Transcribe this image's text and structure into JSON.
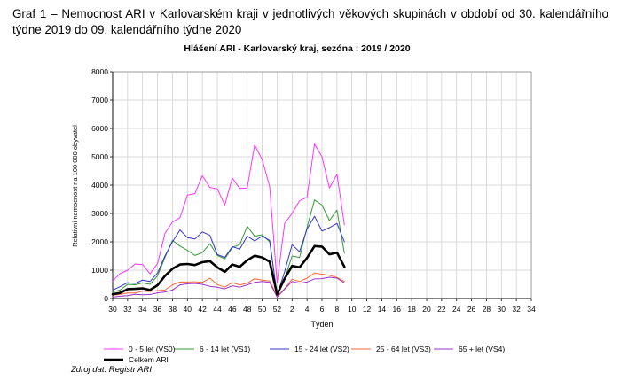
{
  "caption": "Graf 1 – Nemocnost ARI v Karlovarském kraji v jednotlivých věkových skupinách v období od 30. kalendářního týdne 2019 do 09. kalendářního týdne 2020",
  "source": "Zdroj dat: Registr ARI",
  "chart_data": {
    "type": "line",
    "title": "Hlášení ARI  -  Karlovarský kraj, sezóna : 2019 / 2020",
    "xlabel": "Týden",
    "ylabel": "Relativní nemocnost na 100 000 obyvatel",
    "ylim": [
      0,
      8000
    ],
    "yticks": [
      "0",
      "1000",
      "2000",
      "3000",
      "4000",
      "5000",
      "6000",
      "7000",
      "8000"
    ],
    "xticks": [
      "30",
      "32",
      "34",
      "36",
      "38",
      "40",
      "42",
      "44",
      "46",
      "48",
      "50",
      "52",
      "2",
      "4",
      "6",
      "8",
      "10",
      "12",
      "14",
      "16",
      "18",
      "20",
      "22",
      "24",
      "26",
      "28",
      "30",
      "32",
      "34"
    ],
    "weeks": [
      "30",
      "31",
      "32",
      "33",
      "34",
      "35",
      "36",
      "37",
      "38",
      "39",
      "40",
      "41",
      "42",
      "43",
      "44",
      "45",
      "46",
      "47",
      "48",
      "49",
      "50",
      "51",
      "52",
      "1",
      "2",
      "3",
      "4",
      "5",
      "6",
      "7",
      "8",
      "9"
    ],
    "grid": true,
    "legend_position": "bottom",
    "series": [
      {
        "name": "0 - 5 let (VS0)",
        "color": "#ff33ff",
        "width": 1,
        "values": [
          620,
          880,
          1000,
          1220,
          1200,
          870,
          1230,
          2300,
          2700,
          2850,
          3650,
          3700,
          4330,
          3920,
          3870,
          3300,
          4250,
          3880,
          3900,
          5420,
          4900,
          3950,
          550,
          2650,
          3000,
          3450,
          3570,
          5450,
          5000,
          3900,
          4380,
          2600
        ]
      },
      {
        "name": "6 - 14 let (VS1)",
        "color": "#339933",
        "width": 1,
        "values": [
          230,
          300,
          500,
          480,
          550,
          500,
          800,
          1450,
          2050,
          1850,
          1700,
          1520,
          1620,
          1930,
          1520,
          1400,
          1800,
          1900,
          2550,
          2200,
          2250,
          2000,
          150,
          700,
          1500,
          1450,
          2500,
          3480,
          3300,
          2750,
          3120,
          1600
        ]
      },
      {
        "name": "15 - 24 let (VS2)",
        "color": "#3333cc",
        "width": 1,
        "values": [
          300,
          420,
          560,
          530,
          650,
          600,
          900,
          1500,
          2000,
          2420,
          2150,
          2100,
          2350,
          2230,
          1550,
          1450,
          1830,
          1740,
          2200,
          2030,
          2200,
          2050,
          120,
          950,
          1900,
          1650,
          2450,
          2900,
          2380,
          2500,
          2650,
          2000
        ]
      },
      {
        "name": "25 - 64 let (VS3)",
        "color": "#ff6633",
        "width": 1,
        "values": [
          120,
          150,
          200,
          190,
          260,
          250,
          280,
          300,
          480,
          580,
          580,
          590,
          570,
          720,
          490,
          400,
          560,
          480,
          540,
          700,
          650,
          620,
          80,
          350,
          680,
          600,
          720,
          900,
          860,
          820,
          740,
          600
        ]
      },
      {
        "name": "65 + let (VS4)",
        "color": "#9933cc",
        "width": 1,
        "values": [
          50,
          80,
          100,
          150,
          130,
          140,
          200,
          230,
          300,
          480,
          520,
          530,
          500,
          430,
          400,
          340,
          450,
          400,
          480,
          570,
          600,
          570,
          50,
          330,
          600,
          540,
          580,
          690,
          700,
          750,
          720,
          550
        ]
      },
      {
        "name": "Celkem ARI",
        "color": "#000000",
        "width": 2.6,
        "values": [
          150,
          200,
          330,
          340,
          360,
          300,
          470,
          800,
          1050,
          1200,
          1220,
          1180,
          1280,
          1320,
          1100,
          940,
          1200,
          1120,
          1350,
          1510,
          1450,
          1300,
          150,
          700,
          1150,
          1100,
          1430,
          1850,
          1830,
          1560,
          1620,
          1120
        ]
      }
    ]
  }
}
